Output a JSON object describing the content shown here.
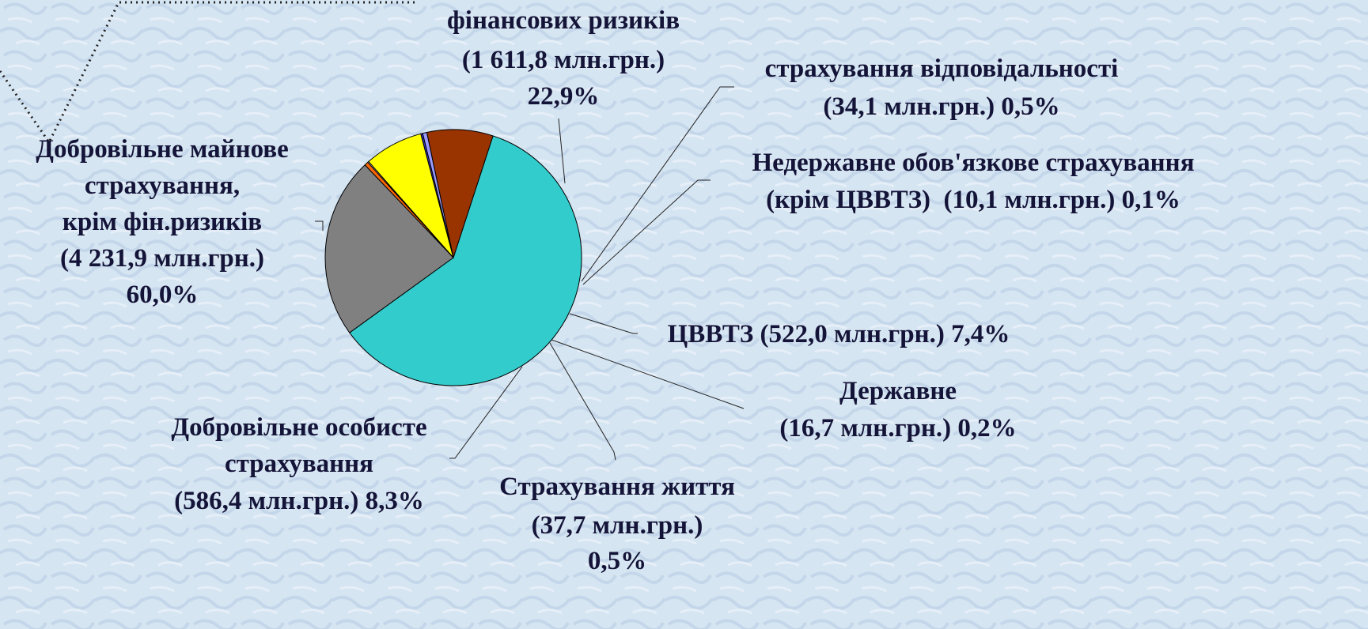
{
  "chart_data": {
    "type": "pie",
    "categories": [
      [
        "Добровільне майнове",
        "страхування,",
        "крім фін.ризиків"
      ],
      [
        "фінансових ризиків"
      ],
      [
        "страхування відповідальності"
      ],
      [
        "Недержавне обов'язкове страхування",
        "(крім ЦВВТЗ) "
      ],
      [
        "ЦВВТЗ"
      ],
      [
        "Державне"
      ],
      [
        "Страхування життя"
      ],
      [
        "Добровільне особисте",
        "страхування"
      ]
    ],
    "values": [
      4231.9,
      1611.8,
      34.1,
      10.1,
      522.0,
      16.7,
      37.7,
      586.4
    ],
    "value_labels": [
      "(4 231,9 млн.грн.)",
      "(1 611,8 млн.грн.)",
      "(34,1 млн.грн.)",
      "(10,1 млн.грн.)",
      "(522,0 млн.грн.)",
      "(16,7 млн.грн.)",
      "(37,7 млн.грн.)",
      "(586,4 млн.грн.)"
    ],
    "percents": [
      60.0,
      22.9,
      0.5,
      0.1,
      7.4,
      0.2,
      0.5,
      8.3
    ],
    "percent_labels": [
      "60,0%",
      "22,9%",
      "0,5%",
      "0,1%",
      "7,4%",
      "0,2%",
      "0,5%",
      "8,3%"
    ],
    "colors": [
      "#33cccc",
      "#808080",
      "#ff6600",
      "#ffffff",
      "#ffff00",
      "#3333cc",
      "#9999ff",
      "#993300"
    ]
  }
}
